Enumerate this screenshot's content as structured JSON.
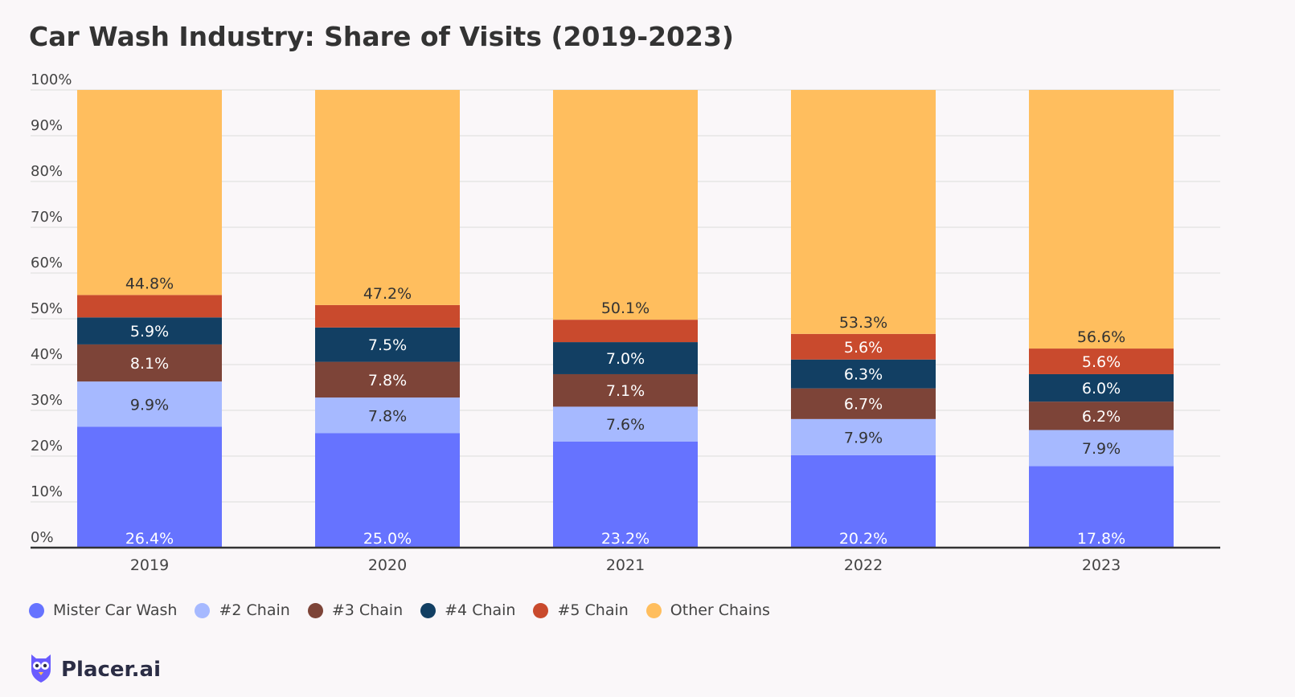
{
  "title": "Car Wash Industry: Share of Visits (2019-2023)",
  "brand": {
    "name": "Placer.ai",
    "logo_icon": "owl-logo-icon"
  },
  "legend": [
    {
      "name": "Mister Car Wash",
      "color": "#6673ff"
    },
    {
      "name": "#2 Chain",
      "color": "#a6b9ff"
    },
    {
      "name": "#3 Chain",
      "color": "#7d4438"
    },
    {
      "name": "#4 Chain",
      "color": "#123f63"
    },
    {
      "name": "#5 Chain",
      "color": "#c94a2d"
    },
    {
      "name": "Other Chains",
      "color": "#ffbe5e"
    }
  ],
  "chart_data": {
    "type": "bar",
    "stacked": true,
    "categories": [
      "2019",
      "2020",
      "2021",
      "2022",
      "2023"
    ],
    "ylim": [
      0,
      100
    ],
    "y_ticks": [
      "0%",
      "10%",
      "20%",
      "30%",
      "40%",
      "50%",
      "60%",
      "70%",
      "80%",
      "90%",
      "100%"
    ],
    "grid": true,
    "legend_position": "bottom-left",
    "series": [
      {
        "name": "Mister Car Wash",
        "color": "#6673ff",
        "values": [
          26.4,
          25.0,
          23.2,
          20.2,
          17.8
        ],
        "labels": [
          "26.4%",
          "25.0%",
          "23.2%",
          "20.2%",
          "17.8%"
        ],
        "label_color": "#ffffff"
      },
      {
        "name": "#2 Chain",
        "color": "#a6b9ff",
        "values": [
          9.9,
          7.8,
          7.6,
          7.9,
          7.9
        ],
        "labels": [
          "9.9%",
          "7.8%",
          "7.6%",
          "7.9%",
          "7.9%"
        ],
        "label_color": "#333333"
      },
      {
        "name": "#3 Chain",
        "color": "#7d4438",
        "values": [
          8.1,
          7.8,
          7.1,
          6.7,
          6.2
        ],
        "labels": [
          "8.1%",
          "7.8%",
          "7.1%",
          "6.7%",
          "6.2%"
        ],
        "label_color": "#ffffff"
      },
      {
        "name": "#4 Chain",
        "color": "#123f63",
        "values": [
          5.9,
          7.5,
          7.0,
          6.3,
          6.0
        ],
        "labels": [
          "5.9%",
          "7.5%",
          "7.0%",
          "6.3%",
          "6.0%"
        ],
        "label_color": "#ffffff"
      },
      {
        "name": "#5 Chain",
        "color": "#c94a2d",
        "values": [
          4.9,
          4.9,
          4.9,
          5.6,
          5.6
        ],
        "labels": [
          "",
          "",
          "",
          "5.6%",
          "5.6%"
        ],
        "label_color": "#ffffff"
      },
      {
        "name": "Other Chains",
        "color": "#ffbe5e",
        "values": [
          44.8,
          47.2,
          50.1,
          53.3,
          56.6
        ],
        "labels": [
          "44.8%",
          "47.2%",
          "50.1%",
          "53.3%",
          "56.6%"
        ],
        "label_color": "#333333"
      }
    ]
  }
}
